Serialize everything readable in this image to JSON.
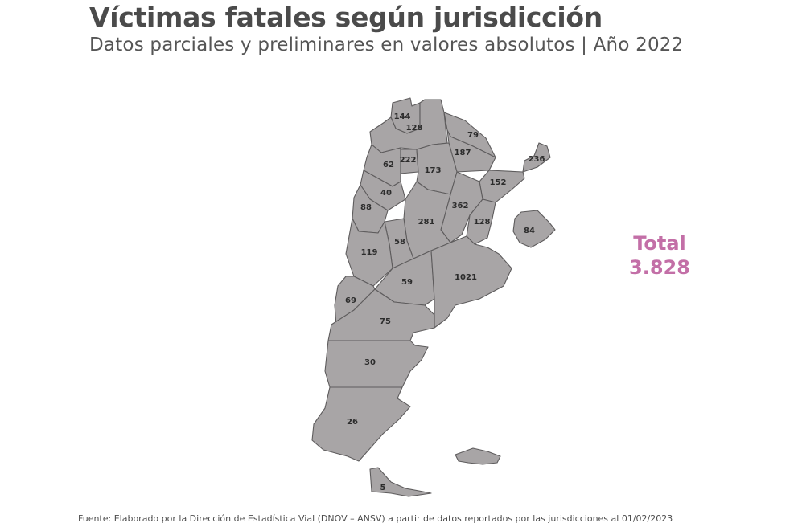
{
  "header": {
    "title": "Víctimas fatales según jurisdicción",
    "subtitle": "Datos parciales y preliminares en valores absolutos | Año 2022"
  },
  "map": {
    "fill_color": "#a8a5a6",
    "border_color": "#5e5c5d",
    "labels": {
      "jujuy": "144",
      "salta": "128",
      "formosa": "79",
      "chaco": "187",
      "misiones": "236",
      "catamarca": "62",
      "tucuman": "222",
      "santiago_del_estero": "173",
      "corrientes": "152",
      "la_rioja": "40",
      "santa_fe": "362",
      "san_juan": "88",
      "cordoba": "281",
      "entre_rios": "128",
      "caba": "84",
      "mendoza": "119",
      "san_luis": "58",
      "la_pampa": "59",
      "buenos_aires": "1021",
      "neuquen": "69",
      "rio_negro": "75",
      "chubut": "30",
      "santa_cruz": "26",
      "tierra_del_fuego": "5"
    }
  },
  "total": {
    "label": "Total",
    "value": "3.828",
    "color": "#c36fa7"
  },
  "footer": {
    "source": "Fuente: Elaborado por la Dirección de Estadística Vial (DNOV – ANSV) a partir de datos reportados por las jurisdicciones al  01/02/2023"
  }
}
